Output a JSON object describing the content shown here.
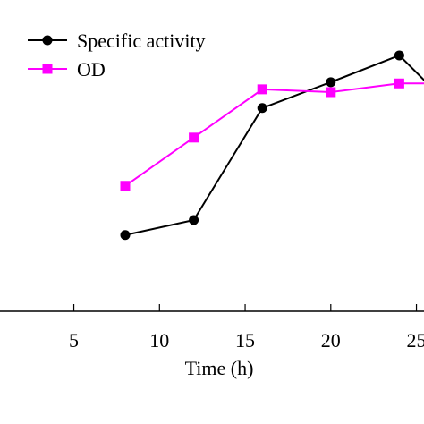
{
  "chart_data": {
    "type": "line",
    "xlabel": "Time (h)",
    "ylabel": "",
    "xlim": [
      0,
      28.2
    ],
    "ylim": [
      0,
      1
    ],
    "x_ticks": [
      "5",
      "10",
      "15",
      "20",
      "25"
    ],
    "grid": false,
    "legend": {
      "position": "top-left"
    },
    "series": [
      {
        "name": "Specific activity",
        "color": "#000000",
        "marker": "circle",
        "x": [
          8,
          12,
          16,
          20,
          24,
          28.2
        ],
        "y": [
          0.245,
          0.293,
          0.653,
          0.736,
          0.822,
          0.592
        ]
      },
      {
        "name": "OD",
        "color": "#ff00ff",
        "marker": "square",
        "x": [
          8,
          12,
          16,
          20,
          24,
          28.2
        ],
        "y": [
          0.403,
          0.558,
          0.713,
          0.704,
          0.732,
          0.732
        ]
      }
    ]
  }
}
